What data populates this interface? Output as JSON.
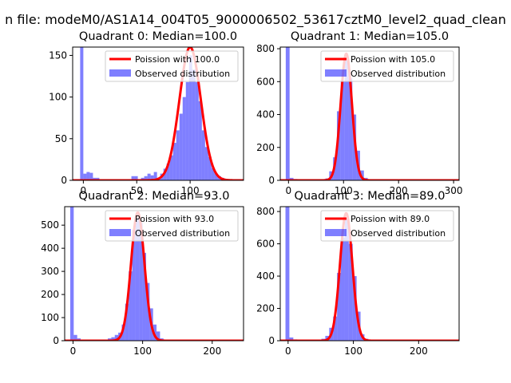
{
  "figure": {
    "suptitle": "n file: modeM0/AS1A14_004T05_9000006502_53617cztM0_level2_quad_clean"
  },
  "colors": {
    "bars": "#0000ff",
    "bar_alpha": 0.5,
    "fit_line": "#ff0000"
  },
  "chart_data": [
    {
      "type": "bar",
      "title": "Quadrant 0: Median=100.0",
      "xlim": [
        -10,
        150
      ],
      "ylim": [
        0,
        160
      ],
      "xticks": [
        0,
        50,
        100
      ],
      "yticks": [
        0,
        50,
        100,
        150
      ],
      "legend_position": "top-right",
      "legend": [
        "Poission with 100.0",
        "Observed distribution"
      ],
      "series": [
        {
          "name": "Poission with 100.0",
          "kind": "line",
          "mean": 100.0,
          "peak": 160
        },
        {
          "name": "Observed distribution",
          "kind": "histogram",
          "bins": [
            [
              -3,
              0,
              160
            ],
            [
              0,
              3,
              8
            ],
            [
              3,
              6,
              10
            ],
            [
              6,
              9,
              9
            ],
            [
              9,
              12,
              3
            ],
            [
              12,
              15,
              3
            ],
            [
              45,
              48,
              5
            ],
            [
              48,
              51,
              5
            ],
            [
              54,
              57,
              3
            ],
            [
              57,
              60,
              5
            ],
            [
              60,
              63,
              8
            ],
            [
              63,
              66,
              6
            ],
            [
              66,
              69,
              10
            ],
            [
              69,
              72,
              3
            ],
            [
              72,
              75,
              8
            ],
            [
              75,
              78,
              14
            ],
            [
              78,
              81,
              20
            ],
            [
              81,
              84,
              30
            ],
            [
              84,
              87,
              45
            ],
            [
              87,
              90,
              60
            ],
            [
              90,
              93,
              80
            ],
            [
              93,
              96,
              100
            ],
            [
              96,
              99,
              118
            ],
            [
              99,
              102,
              150
            ],
            [
              102,
              105,
              133
            ],
            [
              105,
              108,
              118
            ],
            [
              108,
              111,
              95
            ],
            [
              111,
              114,
              60
            ],
            [
              114,
              117,
              40
            ],
            [
              117,
              120,
              28
            ],
            [
              120,
              123,
              15
            ],
            [
              123,
              126,
              8
            ],
            [
              126,
              129,
              5
            ],
            [
              129,
              132,
              3
            ],
            [
              132,
              135,
              1
            ]
          ]
        }
      ]
    },
    {
      "type": "bar",
      "title": "Quadrant 1: Median=105.0",
      "xlim": [
        -15,
        310
      ],
      "ylim": [
        0,
        810
      ],
      "xticks": [
        0,
        100,
        200,
        300
      ],
      "yticks": [
        0,
        200,
        400,
        600,
        800
      ],
      "legend_position": "top-right",
      "legend": [
        "Poission with 105.0",
        "Observed distribution"
      ],
      "series": [
        {
          "name": "Poission with 105.0",
          "kind": "line",
          "mean": 105.0,
          "peak": 770
        },
        {
          "name": "Observed distribution",
          "kind": "histogram",
          "bins": [
            [
              -5,
              2,
              810
            ],
            [
              2,
              9,
              15
            ],
            [
              9,
              16,
              8
            ],
            [
              16,
              23,
              4
            ],
            [
              60,
              67,
              5
            ],
            [
              67,
              74,
              12
            ],
            [
              74,
              81,
              55
            ],
            [
              81,
              88,
              140
            ],
            [
              88,
              95,
              420
            ],
            [
              95,
              102,
              600
            ],
            [
              102,
              109,
              730
            ],
            [
              109,
              116,
              620
            ],
            [
              116,
              123,
              400
            ],
            [
              123,
              130,
              180
            ],
            [
              130,
              137,
              60
            ],
            [
              137,
              144,
              15
            ],
            [
              144,
              151,
              5
            ]
          ]
        }
      ]
    },
    {
      "type": "bar",
      "title": "Quadrant 2: Median=93.0",
      "xlim": [
        -12,
        245
      ],
      "ylim": [
        0,
        580
      ],
      "xticks": [
        0,
        100,
        200
      ],
      "yticks": [
        0,
        100,
        200,
        300,
        400,
        500
      ],
      "legend_position": "top-right",
      "legend": [
        "Poission with 93.0",
        "Observed distribution"
      ],
      "series": [
        {
          "name": "Poission with 93.0",
          "kind": "line",
          "mean": 93.0,
          "peak": 555
        },
        {
          "name": "Observed distribution",
          "kind": "histogram",
          "bins": [
            [
              -4,
              1,
              580
            ],
            [
              1,
              6,
              25
            ],
            [
              6,
              11,
              10
            ],
            [
              40,
              45,
              5
            ],
            [
              50,
              55,
              10
            ],
            [
              55,
              60,
              15
            ],
            [
              60,
              65,
              25
            ],
            [
              65,
              70,
              35
            ],
            [
              70,
              75,
              70
            ],
            [
              75,
              80,
              160
            ],
            [
              80,
              85,
              300
            ],
            [
              85,
              90,
              480
            ],
            [
              90,
              95,
              530
            ],
            [
              95,
              100,
              510
            ],
            [
              100,
              105,
              380
            ],
            [
              105,
              110,
              250
            ],
            [
              110,
              115,
              140
            ],
            [
              115,
              120,
              70
            ],
            [
              120,
              125,
              40
            ],
            [
              125,
              130,
              10
            ],
            [
              130,
              135,
              3
            ]
          ]
        }
      ]
    },
    {
      "type": "bar",
      "title": "Quadrant 3: Median=89.0",
      "xlim": [
        -12,
        262
      ],
      "ylim": [
        0,
        830
      ],
      "xticks": [
        0,
        100,
        200
      ],
      "yticks": [
        0,
        200,
        400,
        600,
        800
      ],
      "legend_position": "top-right",
      "legend": [
        "Poission with 89.0",
        "Observed distribution"
      ],
      "series": [
        {
          "name": "Poission with 89.0",
          "kind": "line",
          "mean": 89.0,
          "peak": 790
        },
        {
          "name": "Observed distribution",
          "kind": "histogram",
          "bins": [
            [
              -4,
              2,
              830
            ],
            [
              2,
              8,
              20
            ],
            [
              8,
              14,
              8
            ],
            [
              45,
              51,
              5
            ],
            [
              51,
              57,
              12
            ],
            [
              57,
              63,
              30
            ],
            [
              63,
              69,
              80
            ],
            [
              69,
              75,
              150
            ],
            [
              75,
              81,
              420
            ],
            [
              81,
              87,
              640
            ],
            [
              87,
              93,
              760
            ],
            [
              93,
              99,
              600
            ],
            [
              99,
              105,
              400
            ],
            [
              105,
              111,
              180
            ],
            [
              111,
              117,
              40
            ],
            [
              117,
              123,
              12
            ]
          ]
        }
      ]
    }
  ]
}
